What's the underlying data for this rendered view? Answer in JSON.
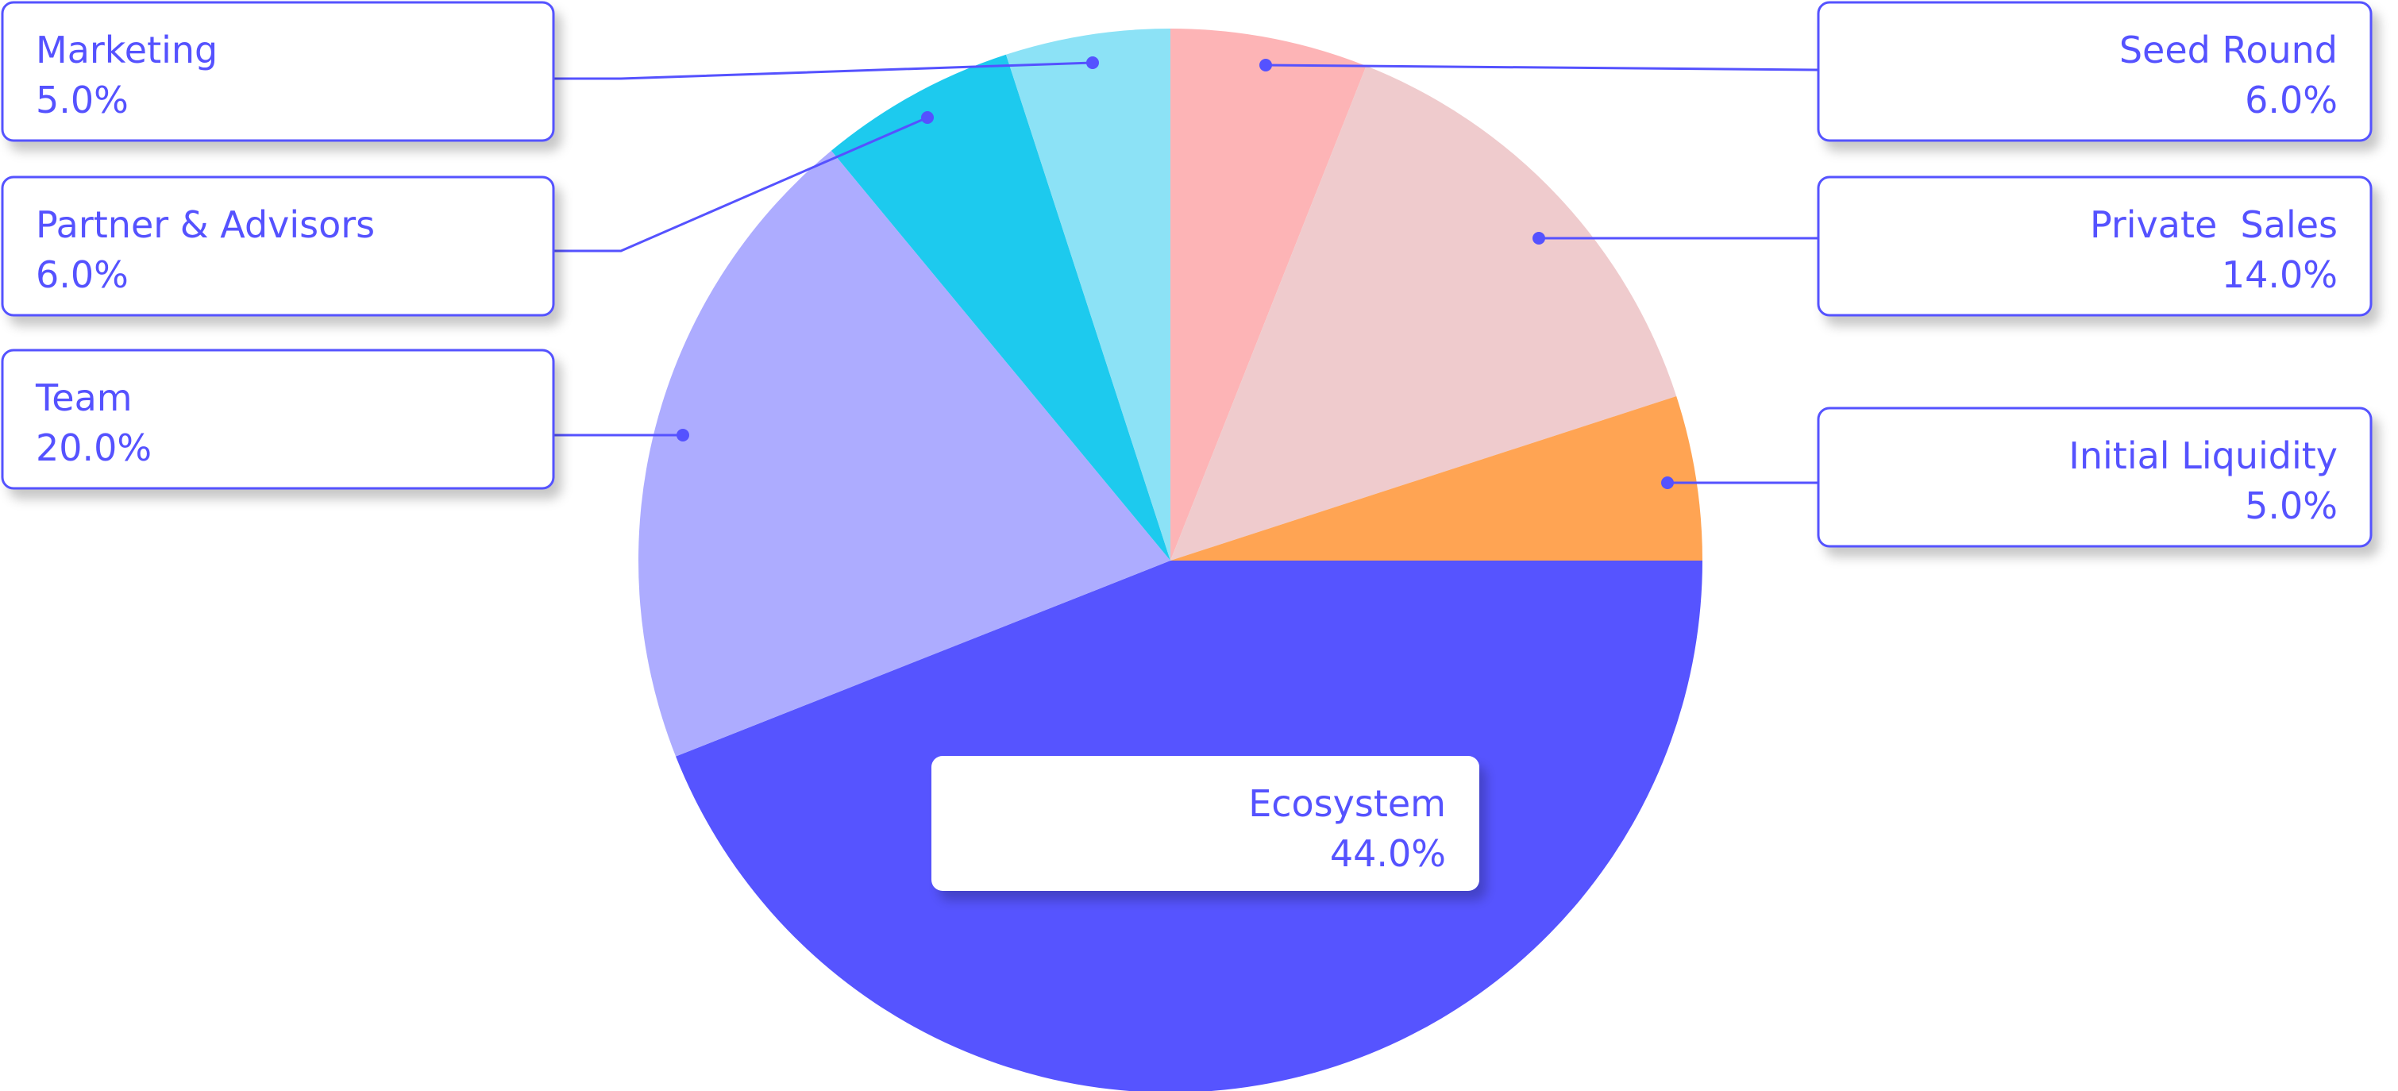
{
  "chart_data": {
    "type": "pie",
    "title": "",
    "start_angle_deg": 90,
    "direction": "clockwise",
    "slices": [
      {
        "label": "Seed Round",
        "value_text": "6.0%",
        "value": 6.0,
        "color": "#fdb4b6"
      },
      {
        "label": "Private  Sales",
        "value_text": "14.0%",
        "value": 14.0,
        "color": "#efcbcd"
      },
      {
        "label": "Initial Liquidity",
        "value_text": "5.0%",
        "value": 5.0,
        "color": "#ffa453"
      },
      {
        "label": "Ecosystem",
        "value_text": "44.0%",
        "value": 44.0,
        "color": "#5654ff"
      },
      {
        "label": "Team",
        "value_text": "20.0%",
        "value": 20.0,
        "color": "#adacff"
      },
      {
        "label": "Partner & Advisors",
        "value_text": "6.0%",
        "value": 6.0,
        "color": "#1dcaee"
      },
      {
        "label": "Marketing",
        "value_text": "5.0%",
        "value": 5.0,
        "color": "#8ce2f6"
      }
    ],
    "accent_color": "#5552ff"
  }
}
